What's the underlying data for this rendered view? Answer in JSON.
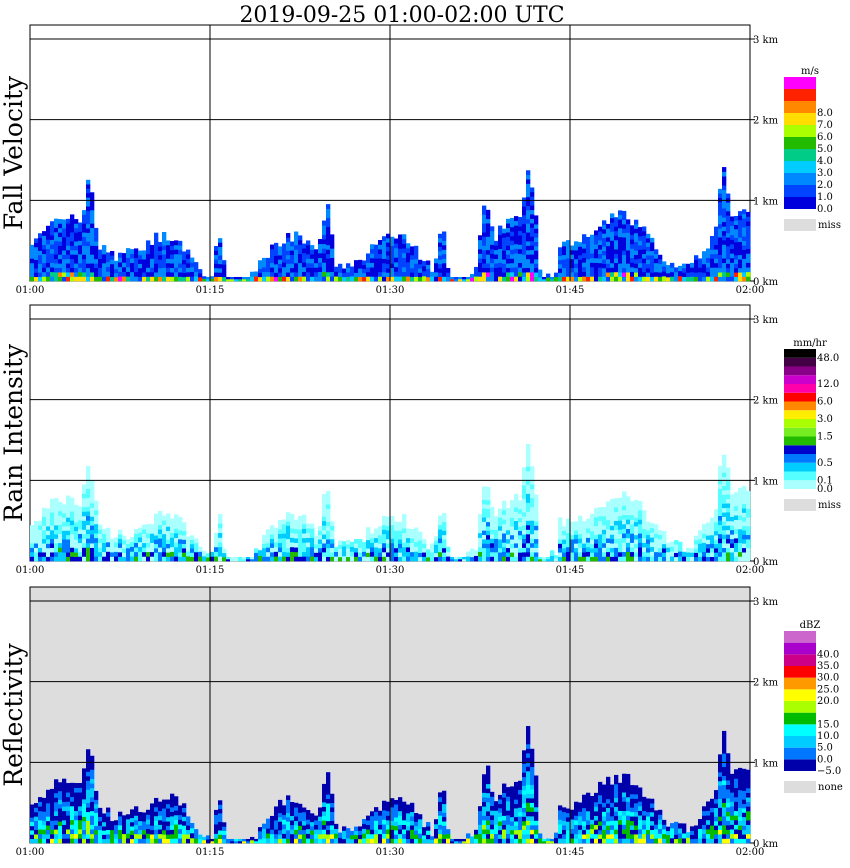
{
  "page": {
    "title": "2019-09-25   01:00-02:00 UTC"
  },
  "chart_data": [
    {
      "type": "heatmap",
      "title": "",
      "ylabel": "Fall Velocity",
      "x_ticks": [
        "01:00",
        "01:15",
        "01:30",
        "01:45",
        "02:00"
      ],
      "y_ticks": [
        "0 km",
        "1 km",
        "2 km",
        "3 km"
      ],
      "ylim_km": [
        0,
        3.0
      ],
      "background": "#ffffff",
      "grid": true,
      "legend_unit": "m/s",
      "legend": [
        {
          "color": "#0000dd",
          "label": "0.0"
        },
        {
          "color": "#0044ff",
          "label": "1.0"
        },
        {
          "color": "#0088ff",
          "label": "2.0"
        },
        {
          "color": "#00ccff",
          "label": "3.0"
        },
        {
          "color": "#00cc88",
          "label": "4.0"
        },
        {
          "color": "#22bb00",
          "label": "5.0"
        },
        {
          "color": "#aaff00",
          "label": "6.0"
        },
        {
          "color": "#ffdd00",
          "label": "7.0"
        },
        {
          "color": "#ff8800",
          "label": "8.0"
        },
        {
          "color": "#ff2200",
          "label": ""
        },
        {
          "color": "#ff00ff",
          "label": ""
        }
      ],
      "legend_extra": {
        "color": "#dddddd",
        "label": "miss"
      }
    },
    {
      "type": "heatmap",
      "title": "",
      "ylabel": "Rain Intensity",
      "x_ticks": [
        "01:00",
        "01:15",
        "01:30",
        "01:45",
        "02:00"
      ],
      "y_ticks": [
        "0 km",
        "1 km",
        "2 km",
        "3 km"
      ],
      "ylim_km": [
        0,
        3.0
      ],
      "background": "#ffffff",
      "grid": true,
      "legend_unit": "mm/hr",
      "legend": [
        {
          "color": "#aaffff",
          "label": "0.0"
        },
        {
          "color": "#55ffff",
          "label": "0.1"
        },
        {
          "color": "#00ccff",
          "label": ""
        },
        {
          "color": "#0077ff",
          "label": "0.5"
        },
        {
          "color": "#0000cc",
          "label": ""
        },
        {
          "color": "#22bb00",
          "label": ""
        },
        {
          "color": "#77ee22",
          "label": "1.5"
        },
        {
          "color": "#aaff00",
          "label": ""
        },
        {
          "color": "#ffee00",
          "label": "3.0"
        },
        {
          "color": "#ff8800",
          "label": ""
        },
        {
          "color": "#ff0000",
          "label": "6.0"
        },
        {
          "color": "#ff00aa",
          "label": ""
        },
        {
          "color": "#cc00cc",
          "label": "12.0"
        },
        {
          "color": "#880088",
          "label": ""
        },
        {
          "color": "#440044",
          "label": ""
        },
        {
          "color": "#000000",
          "label": "48.0"
        }
      ],
      "legend_extra": {
        "color": "#dddddd",
        "label": "miss"
      }
    },
    {
      "type": "heatmap",
      "title": "",
      "ylabel": "Reflectivity",
      "x_ticks": [
        "01:00",
        "01:15",
        "01:30",
        "01:45",
        "02:00"
      ],
      "y_ticks": [
        "0 km",
        "1 km",
        "2 km",
        "3 km"
      ],
      "ylim_km": [
        0,
        3.0
      ],
      "background": "#dddddd",
      "grid": true,
      "legend_unit": "dBZ",
      "legend": [
        {
          "color": "#0000aa",
          "label": "−5.0"
        },
        {
          "color": "#0077ff",
          "label": "0.0"
        },
        {
          "color": "#00ccff",
          "label": "5.0"
        },
        {
          "color": "#00ffff",
          "label": "10.0"
        },
        {
          "color": "#00bb00",
          "label": "15.0"
        },
        {
          "color": "#aaff00",
          "label": ""
        },
        {
          "color": "#ffff00",
          "label": "20.0"
        },
        {
          "color": "#ff9900",
          "label": "25.0"
        },
        {
          "color": "#ff0000",
          "label": "30.0"
        },
        {
          "color": "#cc0088",
          "label": "35.0"
        },
        {
          "color": "#aa00cc",
          "label": "40.0"
        },
        {
          "color": "#cc66cc",
          "label": ""
        }
      ],
      "legend_extra": {
        "color": "#dddddd",
        "label": "none"
      }
    }
  ]
}
